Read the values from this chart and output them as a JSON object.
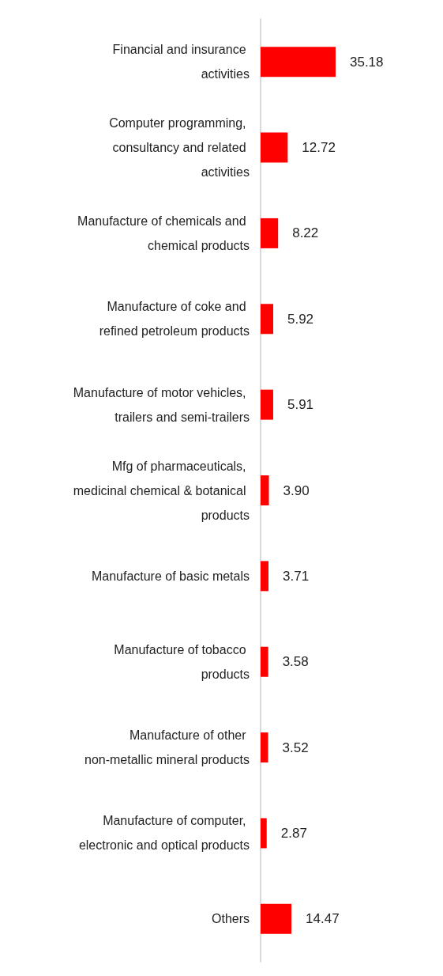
{
  "chart_data": {
    "type": "bar",
    "orientation": "horizontal",
    "categories": [
      "Financial and insurance activities",
      "Computer programming, consultancy and related activities",
      "Manufacture of chemicals and chemical products",
      "Manufacture of coke and refined petroleum products",
      "Manufacture of motor vehicles, trailers and semi-trailers",
      "Mfg of pharmaceuticals, medicinal chemical & botanical products",
      "Manufacture of basic metals",
      "Manufacture of tobacco products",
      "Manufacture of other non-metallic mineral products",
      "Manufacture of computer, electronic and optical products",
      "Others"
    ],
    "values": [
      35.18,
      12.72,
      8.22,
      5.92,
      5.91,
      3.9,
      3.71,
      3.58,
      3.52,
      2.87,
      14.47
    ],
    "value_labels": [
      "35.18",
      "12.72",
      "8.22",
      "5.92",
      "5.91",
      "3.90",
      "3.71",
      "3.58",
      "3.52",
      "2.87",
      "14.47"
    ],
    "color": "#ff0000"
  }
}
